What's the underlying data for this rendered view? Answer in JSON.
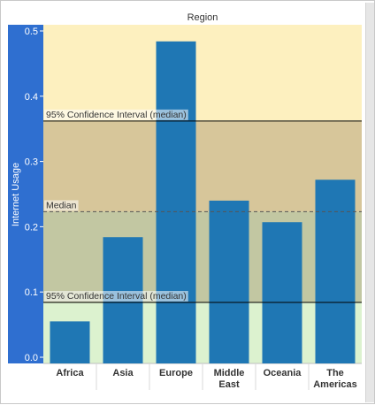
{
  "chart_data": {
    "type": "bar",
    "title": "Region",
    "xlabel": "",
    "ylabel": "Internet Usage",
    "categories": [
      "Africa",
      "Asia",
      "Europe",
      "Middle East",
      "Oceania",
      "The Americas"
    ],
    "category_lines": [
      [
        "Africa"
      ],
      [
        "Asia"
      ],
      [
        "Europe"
      ],
      [
        "Middle",
        "East"
      ],
      [
        "Oceania"
      ],
      [
        "The",
        "Americas"
      ]
    ],
    "values": [
      0.055,
      0.184,
      0.484,
      0.24,
      0.207,
      0.272
    ],
    "ylim": [
      0,
      0.5
    ],
    "yticks": [
      0.0,
      0.1,
      0.2,
      0.3,
      0.4,
      0.5
    ],
    "ytick_labels": [
      "0.0",
      "0.1",
      "0.2",
      "0.3",
      "0.4",
      "0.5"
    ],
    "bar_color": "#1f77b4",
    "reference_lines": [
      {
        "label": "95% Confidence Interval (median)",
        "value": 0.362,
        "style": "solid",
        "color": "#000000"
      },
      {
        "label": "Median",
        "value": 0.223,
        "style": "dashed",
        "color": "#555555"
      },
      {
        "label": "95% Confidence Interval (median)",
        "value": 0.084,
        "style": "solid",
        "color": "#000000"
      }
    ],
    "bands": [
      {
        "from": 0.362,
        "to": 0.5,
        "color": "#fdf0bf"
      },
      {
        "from": 0.223,
        "to": 0.362,
        "color": "#d7c69a"
      },
      {
        "from": 0.084,
        "to": 0.223,
        "color": "#c2c7a2"
      },
      {
        "from": 0.0,
        "to": 0.084,
        "color": "#dcf2cf"
      }
    ],
    "y_axis_panel_color": "#2f6fd0",
    "grid": false
  }
}
